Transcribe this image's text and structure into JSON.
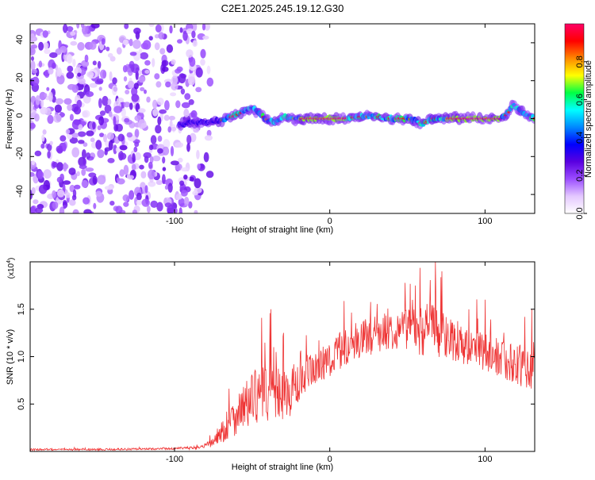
{
  "chart_data": [
    {
      "type": "heatmap",
      "title": "C2E1.2025.245.19.12.G30",
      "xlabel": "Height of straight line (km)",
      "ylabel": "Frequency (Hz)",
      "xlim": [
        -193,
        132
      ],
      "ylim": [
        -50,
        50
      ],
      "x_ticks": [
        -100,
        0,
        100
      ],
      "x_tick_labels": [
        "-100",
        "0",
        "100"
      ],
      "y_ticks": [
        -40,
        -20,
        0,
        20,
        40
      ],
      "y_tick_labels": [
        "-40",
        "-20",
        "0",
        "20",
        "40"
      ],
      "noise_region_x": [
        -193,
        -77
      ],
      "signal_region_x": [
        -97,
        132
      ],
      "ridge": {
        "x": [
          -97,
          -90,
          -80,
          -70,
          -60,
          -55,
          -50,
          -45,
          -40,
          -35,
          -30,
          -25,
          -20,
          -10,
          0,
          10,
          20,
          30,
          40,
          50,
          55,
          60,
          65,
          70,
          80,
          90,
          100,
          110,
          115,
          118,
          122,
          126,
          132
        ],
        "y": [
          -3,
          -2,
          -2,
          -1,
          2,
          4,
          6,
          2,
          -1,
          -2,
          1,
          0,
          0,
          0,
          0,
          0,
          1,
          1,
          0,
          0,
          -1,
          -3,
          0,
          0,
          0,
          0,
          0,
          0,
          3,
          7,
          5,
          2,
          0
        ]
      },
      "colorbar": {
        "label": "Normalized spectral amplitude",
        "range": [
          0,
          1
        ],
        "ticks": [
          0.0,
          0.2,
          0.4,
          0.6,
          0.8
        ],
        "tick_labels": [
          "0.0",
          "0.2",
          "0.4",
          "0.6",
          "0.8"
        ],
        "colors": [
          "#ffffff",
          "#e4c8ff",
          "#9b4dff",
          "#5a00e0",
          "#0000ff",
          "#0088ff",
          "#00ffff",
          "#00ff44",
          "#ffff00",
          "#ff8800",
          "#ff0000",
          "#ff0066"
        ]
      }
    },
    {
      "type": "line",
      "xlabel": "Height of straight line (km)",
      "ylabel": "SNR (10 * v/v)",
      "scale_label": "(x10",
      "scale_exponent": "4",
      "xlim": [
        -193,
        132
      ],
      "ylim": [
        0,
        2.0
      ],
      "x_ticks": [
        -100,
        0,
        100
      ],
      "x_tick_labels": [
        "-100",
        "0",
        "100"
      ],
      "y_ticks": [
        0.5,
        1.0,
        1.5
      ],
      "y_tick_labels": [
        "0.5",
        "1.0",
        "1.5"
      ],
      "color": "#ee3333",
      "envelope": {
        "x": [
          -193,
          -150,
          -100,
          -85,
          -80,
          -75,
          -70,
          -65,
          -60,
          -55,
          -50,
          -45,
          -40,
          -35,
          -30,
          -25,
          -20,
          -15,
          -10,
          -5,
          0,
          10,
          20,
          30,
          40,
          50,
          55,
          60,
          65,
          70,
          75,
          80,
          90,
          100,
          110,
          120,
          132
        ],
        "mean": [
          0.02,
          0.02,
          0.03,
          0.04,
          0.06,
          0.1,
          0.2,
          0.3,
          0.4,
          0.48,
          0.55,
          0.6,
          0.62,
          0.6,
          0.6,
          0.62,
          0.7,
          0.78,
          0.85,
          0.92,
          0.98,
          1.1,
          1.18,
          1.24,
          1.28,
          1.3,
          1.29,
          1.28,
          1.3,
          1.27,
          1.22,
          1.18,
          1.1,
          1.05,
          0.98,
          0.92,
          0.85
        ],
        "spread": [
          0.01,
          0.01,
          0.01,
          0.02,
          0.03,
          0.06,
          0.12,
          0.18,
          0.22,
          0.25,
          0.28,
          0.3,
          0.32,
          0.3,
          0.28,
          0.25,
          0.22,
          0.2,
          0.2,
          0.2,
          0.2,
          0.2,
          0.2,
          0.2,
          0.2,
          0.22,
          0.25,
          0.28,
          0.3,
          0.28,
          0.25,
          0.22,
          0.2,
          0.2,
          0.2,
          0.22,
          0.25
        ]
      },
      "peaks": [
        {
          "x": -38,
          "y": 1.5
        },
        {
          "x": -30,
          "y": 1.25
        },
        {
          "x": 68,
          "y": 2.0
        },
        {
          "x": 72,
          "y": 1.9
        },
        {
          "x": 55,
          "y": 1.75
        },
        {
          "x": 100,
          "y": 1.6
        },
        {
          "x": 130,
          "y": 1.5
        }
      ]
    }
  ]
}
